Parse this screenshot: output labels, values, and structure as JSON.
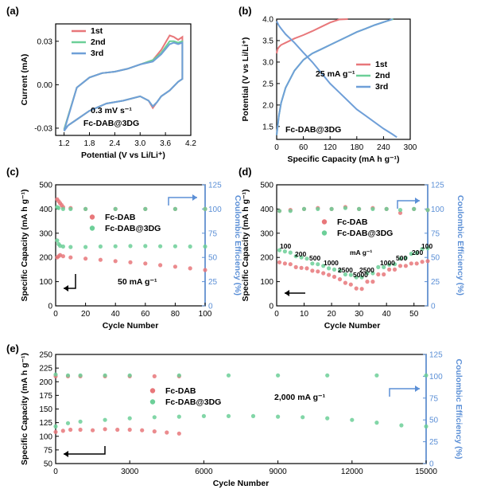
{
  "colors": {
    "red": "#e8777a",
    "green": "#6ccf98",
    "blue": "#6f9fd8",
    "axis_right": "#5b8fd6"
  },
  "chart_data": [
    {
      "id": "a",
      "panel_label": "(a)",
      "type": "line",
      "xlabel": "Potential (V vs Li/Li⁺)",
      "ylabel": "Current (mA)",
      "xlim": [
        1.0,
        4.2
      ],
      "ylim": [
        -0.035,
        0.042
      ],
      "xticks": [
        1.2,
        1.8,
        2.4,
        3.0,
        3.6,
        4.2
      ],
      "xtick_labels": [
        "1.2",
        "1.8",
        "2.4",
        "3.0",
        "3.6",
        "4.2"
      ],
      "yticks": [
        -0.03,
        0.0,
        0.03
      ],
      "ytick_labels": [
        "-0.03",
        "0.00",
        "0.03"
      ],
      "annotations": [
        "0.3 mV s⁻¹",
        "Fc-DAB@3DG"
      ],
      "legend": "top-left",
      "series": [
        {
          "name": "1st",
          "color": "red",
          "x": [
            1.2,
            1.5,
            1.8,
            2.1,
            2.4,
            2.7,
            3.0,
            3.3,
            3.5,
            3.7,
            3.8,
            3.9,
            4.0,
            4.0,
            3.9,
            3.7,
            3.5,
            3.4,
            3.3,
            3.2,
            3.0,
            2.6,
            2.2,
            1.8,
            1.5,
            1.3,
            1.2
          ],
          "y": [
            -0.031,
            -0.002,
            0.005,
            0.008,
            0.009,
            0.011,
            0.014,
            0.017,
            0.024,
            0.034,
            0.033,
            0.031,
            0.033,
            0.004,
            0.002,
            -0.004,
            -0.008,
            -0.012,
            -0.016,
            -0.011,
            -0.008,
            -0.011,
            -0.013,
            -0.018,
            -0.024,
            -0.028,
            -0.031
          ]
        },
        {
          "name": "2nd",
          "color": "green",
          "x": [
            1.2,
            1.5,
            1.8,
            2.1,
            2.4,
            2.7,
            3.0,
            3.3,
            3.5,
            3.7,
            3.8,
            3.9,
            4.0,
            4.0,
            3.9,
            3.7,
            3.5,
            3.4,
            3.3,
            3.2,
            3.0,
            2.6,
            2.2,
            1.8,
            1.5,
            1.3,
            1.2
          ],
          "y": [
            -0.031,
            -0.002,
            0.005,
            0.008,
            0.009,
            0.011,
            0.014,
            0.017,
            0.022,
            0.03,
            0.03,
            0.029,
            0.03,
            0.004,
            0.002,
            -0.004,
            -0.008,
            -0.012,
            -0.015,
            -0.011,
            -0.008,
            -0.011,
            -0.013,
            -0.018,
            -0.024,
            -0.028,
            -0.031
          ]
        },
        {
          "name": "3rd",
          "color": "blue",
          "x": [
            1.2,
            1.5,
            1.8,
            2.1,
            2.4,
            2.7,
            3.0,
            3.3,
            3.5,
            3.7,
            3.8,
            3.9,
            4.0,
            4.0,
            3.9,
            3.7,
            3.5,
            3.4,
            3.3,
            3.2,
            3.0,
            2.6,
            2.2,
            1.8,
            1.5,
            1.3,
            1.2
          ],
          "y": [
            -0.032,
            -0.002,
            0.005,
            0.008,
            0.009,
            0.011,
            0.014,
            0.016,
            0.021,
            0.028,
            0.029,
            0.028,
            0.029,
            0.004,
            0.002,
            -0.004,
            -0.008,
            -0.012,
            -0.015,
            -0.011,
            -0.008,
            -0.011,
            -0.013,
            -0.018,
            -0.024,
            -0.028,
            -0.032
          ]
        }
      ]
    },
    {
      "id": "b",
      "panel_label": "(b)",
      "type": "line",
      "xlabel": "Specific Capacity (mA h g⁻¹)",
      "ylabel": "Potential (V vs Li/Li⁺)",
      "xlim": [
        0,
        300
      ],
      "ylim": [
        1.2,
        4.0
      ],
      "xticks": [
        0,
        60,
        120,
        180,
        240,
        300
      ],
      "xtick_labels": [
        "0",
        "60",
        "120",
        "180",
        "240",
        "300"
      ],
      "yticks": [
        1.5,
        2.0,
        2.5,
        3.0,
        3.5,
        4.0
      ],
      "ytick_labels": [
        "1.5",
        "2.0",
        "2.5",
        "3.0",
        "3.5",
        "4.0"
      ],
      "annotations": [
        "25 mA g⁻¹",
        "Fc-DAB@3DG"
      ],
      "legend": "right",
      "series": [
        {
          "name": "1st",
          "color": "red",
          "x": [
            0,
            2,
            5,
            10,
            20,
            40,
            60,
            80,
            100,
            120,
            140,
            160
          ],
          "y": [
            3.2,
            3.3,
            3.35,
            3.4,
            3.45,
            3.55,
            3.63,
            3.72,
            3.82,
            3.92,
            3.99,
            4.0
          ]
        },
        {
          "name": "2nd",
          "color": "green",
          "x": [
            0,
            5,
            10,
            20,
            40,
            60,
            80,
            100,
            120,
            140,
            160,
            180,
            200,
            220,
            240,
            255,
            262
          ],
          "y": [
            1.3,
            1.75,
            2.05,
            2.4,
            2.8,
            3.05,
            3.2,
            3.3,
            3.4,
            3.5,
            3.6,
            3.7,
            3.78,
            3.86,
            3.93,
            3.98,
            4.0
          ]
        },
        {
          "name": "3rd",
          "color": "blue",
          "x": [
            0,
            5,
            10,
            20,
            40,
            60,
            80,
            100,
            120,
            140,
            160,
            180,
            200,
            220,
            240,
            255,
            260
          ],
          "y": [
            1.3,
            1.75,
            2.05,
            2.4,
            2.8,
            3.05,
            3.2,
            3.3,
            3.4,
            3.5,
            3.6,
            3.7,
            3.78,
            3.86,
            3.93,
            3.98,
            4.0
          ]
        },
        {
          "name": "",
          "color": "blue",
          "x": [
            0,
            5,
            10,
            20,
            40,
            60,
            80,
            100,
            120,
            140,
            160,
            180,
            200,
            220,
            240,
            260,
            270
          ],
          "y": [
            3.95,
            3.85,
            3.78,
            3.65,
            3.45,
            3.22,
            3.0,
            2.75,
            2.5,
            2.3,
            2.1,
            1.9,
            1.75,
            1.6,
            1.45,
            1.32,
            1.25
          ]
        }
      ]
    },
    {
      "id": "c",
      "panel_label": "(c)",
      "type": "scatter",
      "xlabel": "Cycle Number",
      "ylabel": "Specific Capacity (mA h g⁻¹)",
      "y2label": "Coulombic Efficiency (%)",
      "xlim": [
        0,
        100
      ],
      "ylim": [
        0,
        500
      ],
      "y2lim": [
        0,
        125
      ],
      "xticks": [
        0,
        20,
        40,
        60,
        80,
        100
      ],
      "xtick_labels": [
        "0",
        "20",
        "40",
        "60",
        "80",
        "100"
      ],
      "yticks": [
        0,
        100,
        200,
        300,
        400,
        500
      ],
      "ytick_labels": [
        "0",
        "100",
        "200",
        "300",
        "400",
        "500"
      ],
      "y2ticks": [
        0,
        25,
        50,
        75,
        100,
        125
      ],
      "y2tick_labels": [
        "0",
        "25",
        "50",
        "75",
        "100",
        "125"
      ],
      "annotations": [
        "50 mA g⁻¹"
      ],
      "legend": "top-center",
      "series": [
        {
          "name": "Fc-DAB",
          "color": "red",
          "axis": "left",
          "x": [
            1,
            2,
            3,
            5,
            10,
            20,
            30,
            40,
            50,
            60,
            70,
            80,
            90,
            100
          ],
          "y": [
            200,
            205,
            210,
            205,
            200,
            195,
            190,
            185,
            180,
            175,
            168,
            162,
            155,
            148
          ]
        },
        {
          "name": "Fc-DAB@3DG",
          "color": "green",
          "axis": "left",
          "x": [
            1,
            2,
            3,
            5,
            10,
            20,
            30,
            40,
            50,
            60,
            70,
            80,
            90,
            100
          ],
          "y": [
            270,
            255,
            248,
            245,
            243,
            243,
            245,
            246,
            247,
            247,
            246,
            246,
            245,
            245
          ]
        },
        {
          "name": "",
          "color": "red",
          "axis": "right",
          "x": [
            1,
            2,
            3,
            4,
            5,
            10,
            20,
            40,
            60,
            80,
            100
          ],
          "y": [
            110,
            108,
            106,
            104,
            102,
            101,
            100,
            100,
            100,
            100,
            100
          ]
        },
        {
          "name": "",
          "color": "green",
          "axis": "right",
          "x": [
            1,
            2,
            5,
            10,
            20,
            40,
            60,
            80,
            100
          ],
          "y": [
            102,
            101,
            100,
            100,
            100,
            100,
            100,
            100,
            100
          ]
        }
      ]
    },
    {
      "id": "d",
      "panel_label": "(d)",
      "type": "scatter",
      "xlabel": "Cycle Number",
      "ylabel": "Specific Capacity (mA h g⁻¹)",
      "y2label": "Coulombic Efficiency (%)",
      "xlim": [
        0,
        55
      ],
      "ylim": [
        0,
        500
      ],
      "y2lim": [
        0,
        125
      ],
      "xticks": [
        0,
        10,
        20,
        30,
        40,
        50
      ],
      "xtick_labels": [
        "0",
        "10",
        "20",
        "30",
        "40",
        "50"
      ],
      "yticks": [
        0,
        100,
        200,
        300,
        400,
        500
      ],
      "ytick_labels": [
        "0",
        "100",
        "200",
        "300",
        "400",
        "500"
      ],
      "y2ticks": [
        0,
        25,
        50,
        75,
        100,
        125
      ],
      "y2tick_labels": [
        "0",
        "25",
        "50",
        "75",
        "100",
        "125"
      ],
      "annotations": [
        "100",
        "200",
        "500",
        "1000",
        "2500",
        "5000",
        "2500",
        "1000",
        "500",
        "200",
        "100",
        "mA g⁻¹"
      ],
      "legend": "top-center",
      "series": [
        {
          "name": "Fc-DAB",
          "color": "red",
          "axis": "left",
          "x": [
            1,
            3,
            5,
            7,
            9,
            11,
            13,
            15,
            17,
            19,
            21,
            23,
            25,
            27,
            29,
            31,
            33,
            35,
            37,
            39,
            41,
            43,
            45,
            47,
            49,
            51,
            53,
            55
          ],
          "y": [
            180,
            175,
            172,
            160,
            157,
            155,
            145,
            142,
            135,
            128,
            120,
            110,
            95,
            88,
            72,
            70,
            100,
            100,
            130,
            130,
            150,
            150,
            165,
            165,
            175,
            175,
            182,
            185
          ]
        },
        {
          "name": "Fc-DAB@3DG",
          "color": "green",
          "axis": "left",
          "x": [
            1,
            3,
            5,
            7,
            9,
            11,
            13,
            15,
            17,
            19,
            21,
            23,
            25,
            27,
            29,
            31,
            33,
            35,
            37,
            39,
            41,
            43,
            45,
            47,
            49,
            51,
            53,
            55
          ],
          "y": [
            230,
            225,
            220,
            205,
            200,
            195,
            175,
            172,
            165,
            155,
            150,
            145,
            130,
            128,
            118,
            118,
            135,
            135,
            160,
            160,
            170,
            172,
            195,
            198,
            215,
            218,
            235,
            238
          ]
        },
        {
          "name": "",
          "color": "red",
          "axis": "right",
          "x": [
            1,
            5,
            10,
            15,
            20,
            25,
            30,
            35,
            40,
            45,
            50,
            55
          ],
          "y": [
            98,
            99,
            100,
            101,
            100,
            102,
            100,
            101,
            100,
            96,
            100,
            99
          ]
        },
        {
          "name": "",
          "color": "green",
          "axis": "right",
          "x": [
            1,
            5,
            10,
            15,
            20,
            25,
            30,
            35,
            40,
            45,
            50,
            55
          ],
          "y": [
            98,
            98,
            100,
            100,
            100,
            101,
            100,
            100,
            100,
            99,
            100,
            99
          ]
        }
      ]
    },
    {
      "id": "e",
      "panel_label": "(e)",
      "type": "scatter",
      "xlabel": "Cycle Number",
      "ylabel": "Specific Capacity (mA h g⁻¹)",
      "y2label": "Coulombic Efficiency (%)",
      "xlim": [
        0,
        15000
      ],
      "ylim": [
        50,
        250
      ],
      "y2lim": [
        0,
        125
      ],
      "xticks": [
        0,
        3000,
        6000,
        9000,
        12000,
        15000
      ],
      "xtick_labels": [
        "0",
        "3000",
        "6000",
        "9000",
        "12000",
        "15000"
      ],
      "yticks": [
        50,
        75,
        100,
        125,
        150,
        175,
        200,
        225,
        250
      ],
      "ytick_labels": [
        "50",
        "75",
        "100",
        "125",
        "150",
        "175",
        "200",
        "225",
        "250"
      ],
      "y2ticks": [
        0,
        25,
        50,
        75,
        100,
        125
      ],
      "y2tick_labels": [
        "0",
        "25",
        "50",
        "75",
        "100",
        "125"
      ],
      "annotations": [
        "2,000 mA g⁻¹"
      ],
      "legend": "top-center",
      "series": [
        {
          "name": "Fc-DAB",
          "color": "red",
          "axis": "left",
          "x": [
            0,
            300,
            600,
            1000,
            1500,
            2000,
            2500,
            3000,
            3500,
            4000,
            4500,
            5000
          ],
          "y": [
            108,
            110,
            112,
            112,
            111,
            113,
            112,
            112,
            111,
            109,
            107,
            105
          ]
        },
        {
          "name": "Fc-DAB@3DG",
          "color": "green",
          "axis": "left",
          "x": [
            0,
            500,
            1000,
            2000,
            3000,
            4000,
            5000,
            6000,
            7000,
            8000,
            9000,
            10000,
            11000,
            12000,
            13000,
            14000,
            15000
          ],
          "y": [
            118,
            124,
            127,
            130,
            133,
            135,
            136,
            137,
            137,
            137,
            136,
            135,
            133,
            130,
            125,
            120,
            118
          ]
        },
        {
          "name": "",
          "color": "red",
          "axis": "right",
          "x": [
            0,
            500,
            1000,
            2000,
            3000,
            4000,
            5000
          ],
          "y": [
            100,
            100,
            100,
            100,
            100,
            100,
            100
          ]
        },
        {
          "name": "",
          "color": "green",
          "axis": "right",
          "x": [
            0,
            500,
            1000,
            2000,
            3000,
            5000,
            7000,
            9000,
            11000,
            13000,
            15000
          ],
          "y": [
            102,
            101,
            101,
            101,
            101,
            101,
            101,
            101,
            101,
            101,
            101
          ]
        }
      ]
    }
  ]
}
